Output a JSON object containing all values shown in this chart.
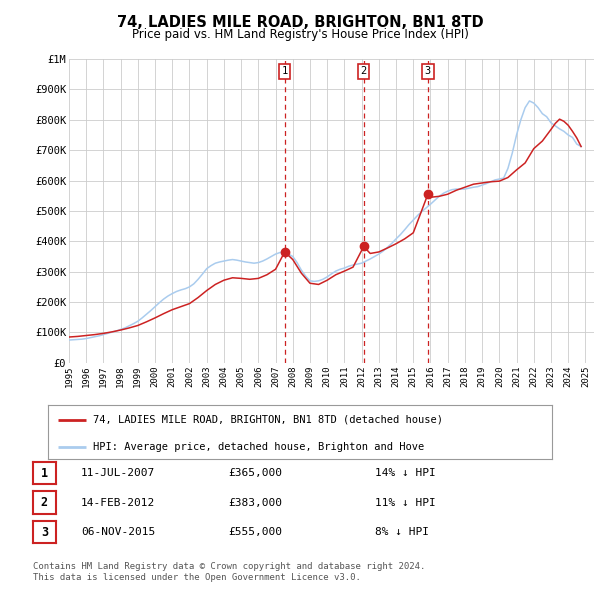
{
  "title": "74, LADIES MILE ROAD, BRIGHTON, BN1 8TD",
  "subtitle": "Price paid vs. HM Land Registry's House Price Index (HPI)",
  "hpi_color": "#aaccee",
  "price_color": "#cc2222",
  "background_color": "#ffffff",
  "grid_color": "#cccccc",
  "ylim": [
    0,
    1000000
  ],
  "yticks": [
    0,
    100000,
    200000,
    300000,
    400000,
    500000,
    600000,
    700000,
    800000,
    900000,
    1000000
  ],
  "ytick_labels": [
    "£0",
    "£100K",
    "£200K",
    "£300K",
    "£400K",
    "£500K",
    "£600K",
    "£700K",
    "£800K",
    "£900K",
    "£1M"
  ],
  "xmin": 1995.0,
  "xmax": 2025.5,
  "xticks": [
    1995,
    1996,
    1997,
    1998,
    1999,
    2000,
    2001,
    2002,
    2003,
    2004,
    2005,
    2006,
    2007,
    2008,
    2009,
    2010,
    2011,
    2012,
    2013,
    2014,
    2015,
    2016,
    2017,
    2018,
    2019,
    2020,
    2021,
    2022,
    2023,
    2024,
    2025
  ],
  "sale_dates": [
    2007.53,
    2012.12,
    2015.85
  ],
  "sale_prices": [
    365000,
    383000,
    555000
  ],
  "sale_labels": [
    "1",
    "2",
    "3"
  ],
  "vline_color": "#cc2222",
  "dot_color": "#cc2222",
  "legend_label_red": "74, LADIES MILE ROAD, BRIGHTON, BN1 8TD (detached house)",
  "legend_label_blue": "HPI: Average price, detached house, Brighton and Hove",
  "table_entries": [
    {
      "num": "1",
      "date": "11-JUL-2007",
      "price": "£365,000",
      "pct": "14% ↓ HPI"
    },
    {
      "num": "2",
      "date": "14-FEB-2012",
      "price": "£383,000",
      "pct": "11% ↓ HPI"
    },
    {
      "num": "3",
      "date": "06-NOV-2015",
      "price": "£555,000",
      "pct": "8% ↓ HPI"
    }
  ],
  "footer": "Contains HM Land Registry data © Crown copyright and database right 2024.\nThis data is licensed under the Open Government Licence v3.0.",
  "hpi_data_x": [
    1995.0,
    1995.25,
    1995.5,
    1995.75,
    1996.0,
    1996.25,
    1996.5,
    1996.75,
    1997.0,
    1997.25,
    1997.5,
    1997.75,
    1998.0,
    1998.25,
    1998.5,
    1998.75,
    1999.0,
    1999.25,
    1999.5,
    1999.75,
    2000.0,
    2000.25,
    2000.5,
    2000.75,
    2001.0,
    2001.25,
    2001.5,
    2001.75,
    2002.0,
    2002.25,
    2002.5,
    2002.75,
    2003.0,
    2003.25,
    2003.5,
    2003.75,
    2004.0,
    2004.25,
    2004.5,
    2004.75,
    2005.0,
    2005.25,
    2005.5,
    2005.75,
    2006.0,
    2006.25,
    2006.5,
    2006.75,
    2007.0,
    2007.25,
    2007.5,
    2007.75,
    2008.0,
    2008.25,
    2008.5,
    2008.75,
    2009.0,
    2009.25,
    2009.5,
    2009.75,
    2010.0,
    2010.25,
    2010.5,
    2010.75,
    2011.0,
    2011.25,
    2011.5,
    2011.75,
    2012.0,
    2012.25,
    2012.5,
    2012.75,
    2013.0,
    2013.25,
    2013.5,
    2013.75,
    2014.0,
    2014.25,
    2014.5,
    2014.75,
    2015.0,
    2015.25,
    2015.5,
    2015.75,
    2016.0,
    2016.25,
    2016.5,
    2016.75,
    2017.0,
    2017.25,
    2017.5,
    2017.75,
    2018.0,
    2018.25,
    2018.5,
    2018.75,
    2019.0,
    2019.25,
    2019.5,
    2019.75,
    2020.0,
    2020.25,
    2020.5,
    2020.75,
    2021.0,
    2021.25,
    2021.5,
    2021.75,
    2022.0,
    2022.25,
    2022.5,
    2022.75,
    2023.0,
    2023.25,
    2023.5,
    2023.75,
    2024.0,
    2024.25,
    2024.5,
    2024.75
  ],
  "hpi_data_y": [
    75000,
    76000,
    77000,
    78000,
    80000,
    83000,
    86000,
    89000,
    93000,
    97000,
    101000,
    105000,
    110000,
    115000,
    122000,
    129000,
    137000,
    148000,
    160000,
    172000,
    185000,
    198000,
    210000,
    220000,
    228000,
    235000,
    240000,
    244000,
    250000,
    260000,
    275000,
    292000,
    310000,
    320000,
    328000,
    332000,
    335000,
    338000,
    340000,
    338000,
    335000,
    332000,
    330000,
    328000,
    330000,
    335000,
    342000,
    350000,
    358000,
    363000,
    365000,
    358000,
    350000,
    330000,
    305000,
    285000,
    270000,
    268000,
    270000,
    275000,
    283000,
    293000,
    302000,
    308000,
    312000,
    318000,
    322000,
    325000,
    328000,
    335000,
    342000,
    350000,
    358000,
    368000,
    380000,
    393000,
    408000,
    422000,
    438000,
    455000,
    470000,
    485000,
    498000,
    510000,
    522000,
    535000,
    548000,
    558000,
    565000,
    570000,
    572000,
    572000,
    572000,
    575000,
    578000,
    580000,
    585000,
    590000,
    596000,
    602000,
    605000,
    608000,
    640000,
    690000,
    750000,
    800000,
    840000,
    862000,
    855000,
    840000,
    820000,
    810000,
    790000,
    780000,
    770000,
    762000,
    750000,
    742000,
    720000,
    712000
  ],
  "price_data_x": [
    1995.0,
    1995.5,
    1996.0,
    1996.5,
    1997.0,
    1997.5,
    1998.0,
    1998.5,
    1999.0,
    1999.5,
    2000.0,
    2000.5,
    2001.0,
    2001.5,
    2002.0,
    2002.5,
    2003.0,
    2003.5,
    2004.0,
    2004.5,
    2005.0,
    2005.5,
    2006.0,
    2006.5,
    2007.0,
    2007.53,
    2008.0,
    2008.5,
    2009.0,
    2009.5,
    2010.0,
    2010.5,
    2011.0,
    2011.5,
    2012.12,
    2012.5,
    2013.0,
    2013.5,
    2014.0,
    2014.5,
    2015.0,
    2015.85,
    2016.0,
    2016.5,
    2017.0,
    2017.5,
    2018.0,
    2018.5,
    2019.0,
    2019.5,
    2020.0,
    2020.5,
    2021.0,
    2021.5,
    2022.0,
    2022.5,
    2023.0,
    2023.25,
    2023.5,
    2023.75,
    2024.0,
    2024.25,
    2024.5,
    2024.75
  ],
  "price_data_y": [
    85000,
    87000,
    90000,
    93000,
    97000,
    102000,
    108000,
    115000,
    123000,
    135000,
    148000,
    162000,
    175000,
    185000,
    195000,
    215000,
    238000,
    258000,
    272000,
    280000,
    278000,
    275000,
    278000,
    290000,
    308000,
    365000,
    340000,
    295000,
    262000,
    258000,
    272000,
    290000,
    302000,
    315000,
    383000,
    360000,
    365000,
    378000,
    392000,
    408000,
    428000,
    555000,
    545000,
    548000,
    555000,
    568000,
    578000,
    588000,
    592000,
    596000,
    598000,
    610000,
    635000,
    658000,
    705000,
    730000,
    768000,
    788000,
    802000,
    795000,
    782000,
    762000,
    740000,
    712000
  ]
}
